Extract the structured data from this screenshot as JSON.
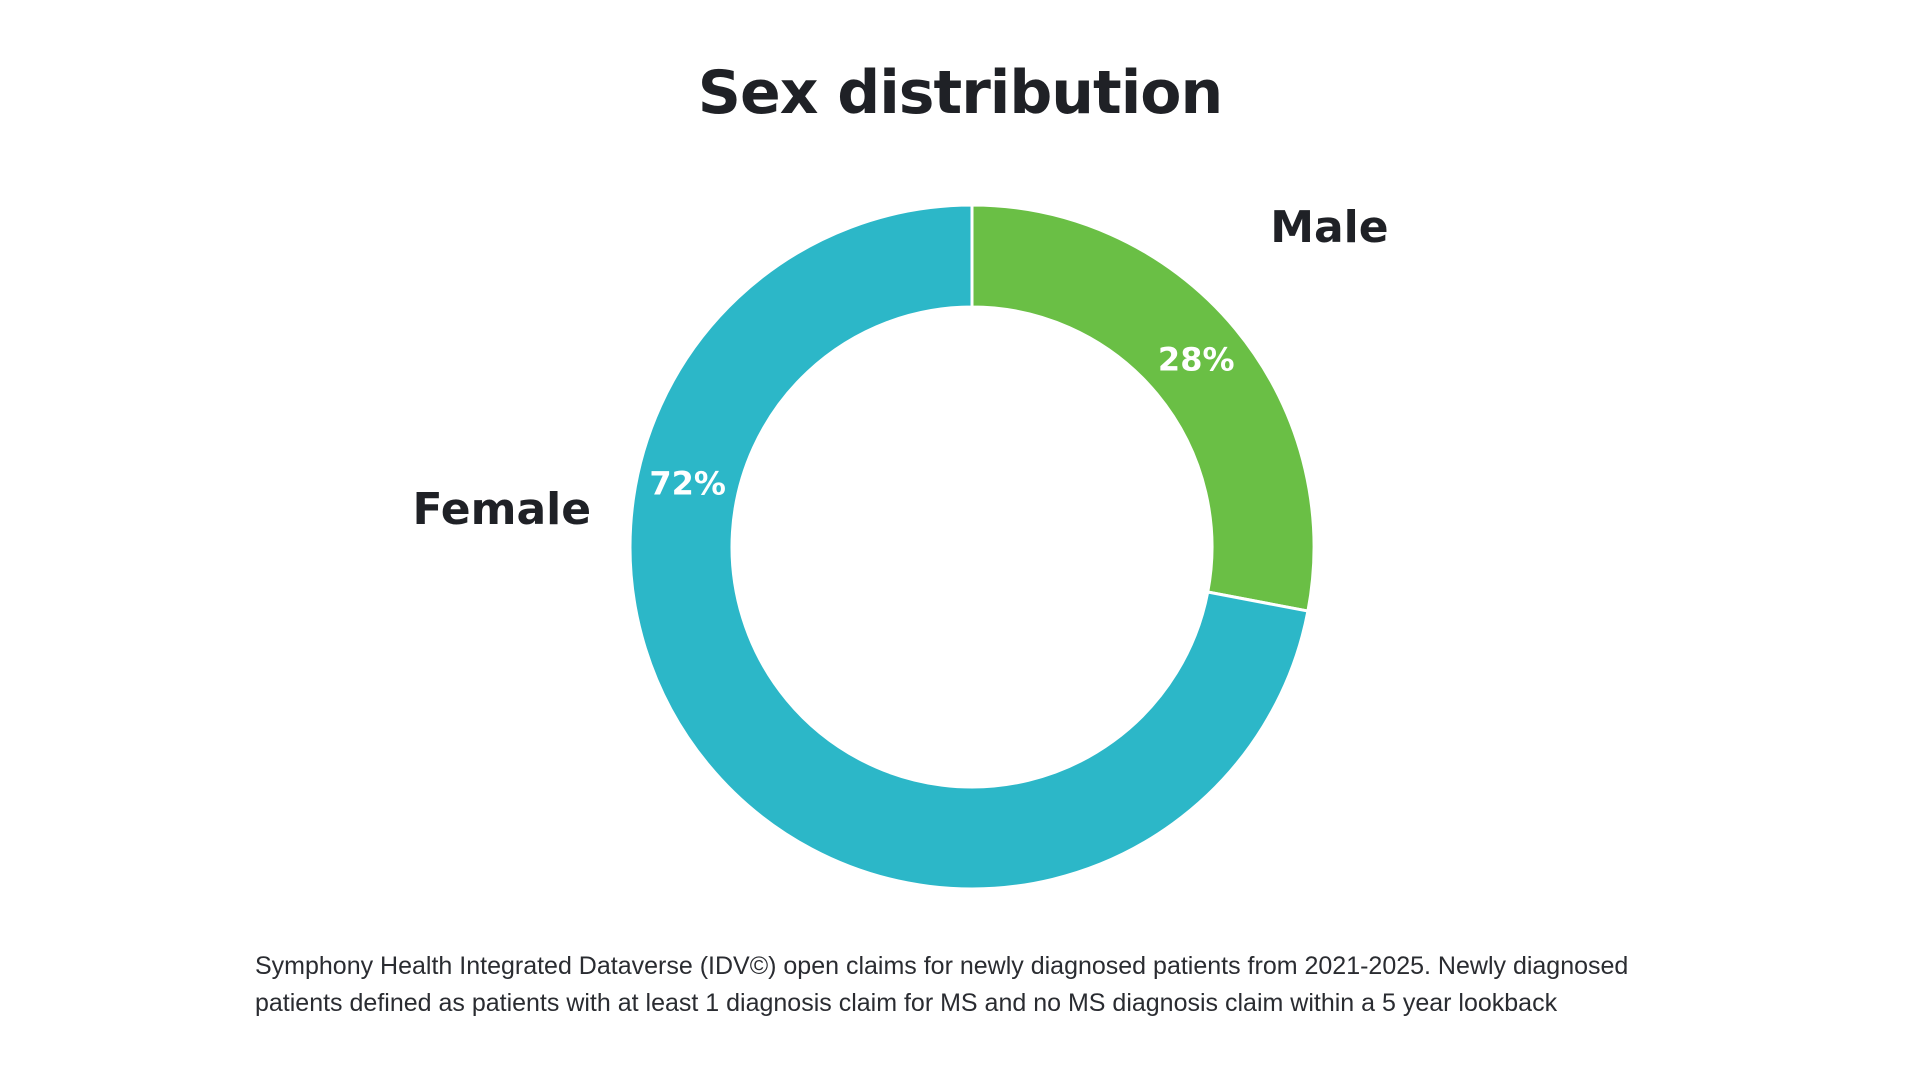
{
  "chart_data": {
    "type": "pie",
    "title": "Sex distribution",
    "categories": [
      "Male",
      "Female"
    ],
    "values": [
      28,
      72
    ],
    "value_labels": [
      "28%",
      "72%"
    ],
    "colors": [
      "#6abf45",
      "#2cb7c8"
    ],
    "donut": true,
    "start_angle_deg": 0,
    "legend": "none"
  },
  "footnote": {
    "line1": "Symphony Health Integrated Dataverse (IDV©) open claims for newly diagnosed patients from 2021-2025.  Newly diagnosed",
    "line2": "patients defined as patients with at least 1 diagnosis claim for MS and no MS diagnosis claim within a 5 year lookback"
  }
}
